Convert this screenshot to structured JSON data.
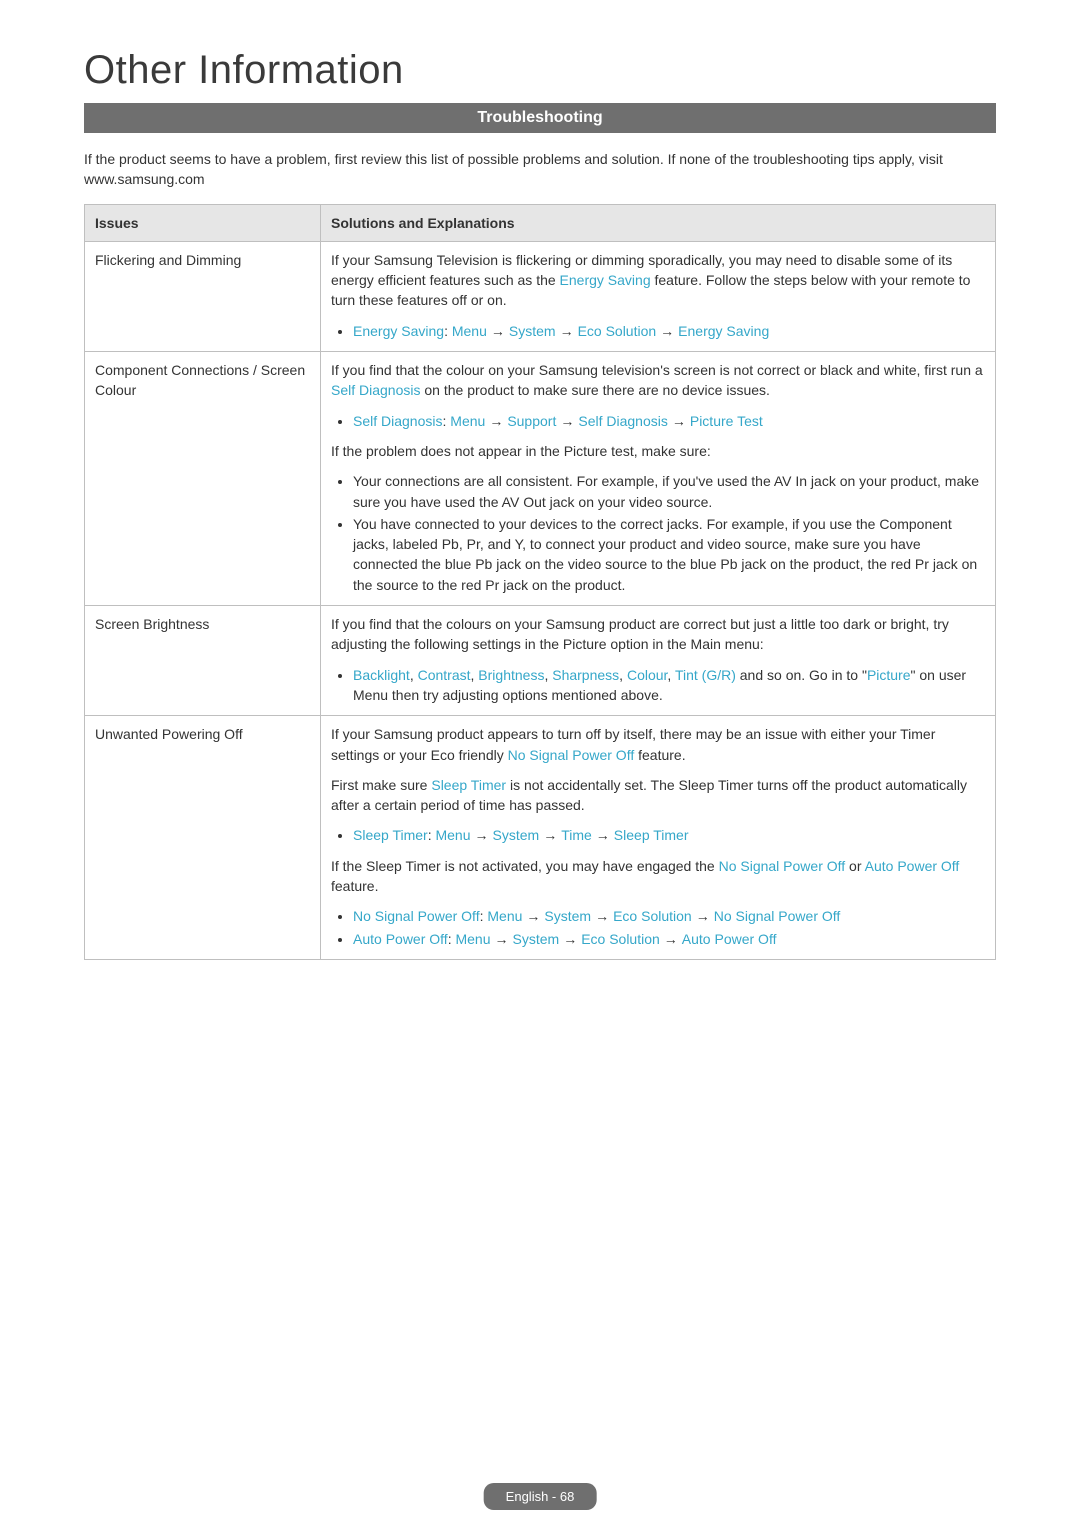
{
  "colors": {
    "banner_bg": "#6f6f6f",
    "banner_text": "#ffffff",
    "header_bg": "#e6e6e6",
    "border": "#bfbfbf",
    "text": "#333333",
    "highlight": "#35a7c9",
    "page_bg": "#ffffff"
  },
  "typography": {
    "title_fontsize_pt": 30,
    "title_weight": 300,
    "body_fontsize_pt": 10.5,
    "banner_fontsize_pt": 12,
    "footer_fontsize_pt": 10,
    "font_family": "Arial, Helvetica, sans-serif"
  },
  "page": {
    "title": "Other Information",
    "section_banner": "Troubleshooting",
    "intro": "If the product seems to have a problem, first review this list of possible problems and solution. If none of the troubleshooting tips apply, visit www.samsung.com",
    "footer": "English - 68"
  },
  "table": {
    "columns": {
      "issues": "Issues",
      "solutions": "Solutions and Explanations"
    },
    "rows": {
      "flickering": {
        "issue": "Flickering and Dimming",
        "para1_a": "If your Samsung Television is flickering or dimming sporadically, you may need to disable some of its energy efficient features such as the ",
        "para1_hl1": "Energy Saving",
        "para1_b": " feature. Follow the steps below with your remote to turn these features off or on.",
        "b1_label": "Energy Saving",
        "b1_colon": ": ",
        "b1_s1": "Menu",
        "b1_s2": "System",
        "b1_s3": "Eco Solution",
        "b1_s4": "Energy Saving"
      },
      "component": {
        "issue": "Component Connections / Screen Colour",
        "para1_a": "If you find that the colour on your Samsung television's screen is not correct or black and white, first run a ",
        "para1_hl1": "Self Diagnosis",
        "para1_b": " on the product to make sure there are no device issues.",
        "b1_label": "Self Diagnosis",
        "b1_colon": ": ",
        "b1_s1": "Menu",
        "b1_s2": "Support",
        "b1_s3": "Self Diagnosis",
        "b1_s4": "Picture Test",
        "para2": "If the problem does not appear in the Picture test, make sure:",
        "bul2_1": "Your connections are all consistent. For example, if you've used the AV In jack on your product, make sure you have used the AV Out jack on your video source.",
        "bul2_2": "You have connected to your devices to the correct jacks. For example, if you use the Component jacks, labeled Pb, Pr, and Y, to connect your product and video source, make sure you have connected the blue Pb jack on the video source to the blue Pb jack on the product, the red Pr jack on the source to the red Pr jack on the product."
      },
      "brightness": {
        "issue": "Screen Brightness",
        "para1": "If you find that the colours on your Samsung product are correct but just a little too dark or bright, try adjusting the following settings in the Picture option in the Main menu:",
        "b1_hl1": "Backlight",
        "b1_sep": ", ",
        "b1_hl2": "Contrast",
        "b1_hl3": "Brightness",
        "b1_hl4": "Sharpness",
        "b1_hl5": "Colour",
        "b1_hl6": "Tint (G/R)",
        "b1_tail_a": " and so on. Go in to \"",
        "b1_hl7": "Picture",
        "b1_tail_b": "\" on user Menu then try adjusting options mentioned above."
      },
      "poweroff": {
        "issue": "Unwanted Powering Off",
        "para1_a": "If your Samsung product appears to turn off by itself, there may be an issue with either your Timer settings or your Eco friendly ",
        "para1_hl1": "No Signal Power Off",
        "para1_b": " feature.",
        "para2_a": "First make sure ",
        "para2_hl1": "Sleep Timer",
        "para2_b": " is not accidentally set. The Sleep Timer turns off the product automatically after a certain period of time has passed.",
        "b1_label": "Sleep Timer",
        "b1_colon": ": ",
        "b1_s1": "Menu",
        "b1_s2": "System",
        "b1_s3": "Time",
        "b1_s4": "Sleep Timer",
        "para3_a": "If the Sleep Timer is not activated, you may have engaged the ",
        "para3_hl1": "No Signal Power Off",
        "para3_mid": " or ",
        "para3_hl2": "Auto Power Off",
        "para3_b": " feature.",
        "b2_label": "No Signal Power Off",
        "b2_colon": ": ",
        "b2_s1": "Menu",
        "b2_s2": "System",
        "b2_s3": "Eco Solution",
        "b2_s4": "No Signal Power Off",
        "b3_label": "Auto Power Off",
        "b3_colon": ": ",
        "b3_s1": "Menu",
        "b3_s2": "System",
        "b3_s3": "Eco Solution",
        "b3_s4": "Auto Power Off"
      }
    },
    "arrow": "→"
  }
}
